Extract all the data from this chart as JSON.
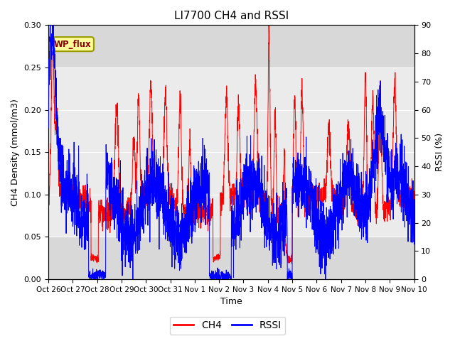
{
  "title": "LI7700 CH4 and RSSI",
  "xlabel": "Time",
  "ylabel_left": "CH4 Density (mmol/m3)",
  "ylabel_right": "RSSI (%)",
  "site_label": "WP_flux",
  "ylim_left": [
    0.0,
    0.3
  ],
  "ylim_right": [
    0,
    90
  ],
  "yticks_left": [
    0.0,
    0.05,
    0.1,
    0.15,
    0.2,
    0.25,
    0.3
  ],
  "yticks_right": [
    0,
    10,
    20,
    30,
    40,
    50,
    60,
    70,
    80,
    90
  ],
  "xtick_labels": [
    "Oct 26",
    "Oct 27",
    "Oct 28",
    "Oct 29",
    "Oct 30",
    "Oct 31",
    "Nov 1",
    "Nov 2",
    "Nov 3",
    "Nov 4",
    "Nov 5",
    "Nov 6",
    "Nov 7",
    "Nov 8",
    "Nov 9",
    "Nov 10"
  ],
  "ch4_color": "#FF0000",
  "rssi_color": "#0000FF",
  "bg_outer": "#D8D8D8",
  "bg_inner": "#EBEBEB",
  "legend_ch4": "CH4",
  "legend_rssi": "RSSI",
  "site_label_bg": "#FFFF99",
  "site_label_border": "#999900",
  "site_label_color": "#8B0000",
  "figsize": [
    6.4,
    4.8
  ],
  "dpi": 100
}
